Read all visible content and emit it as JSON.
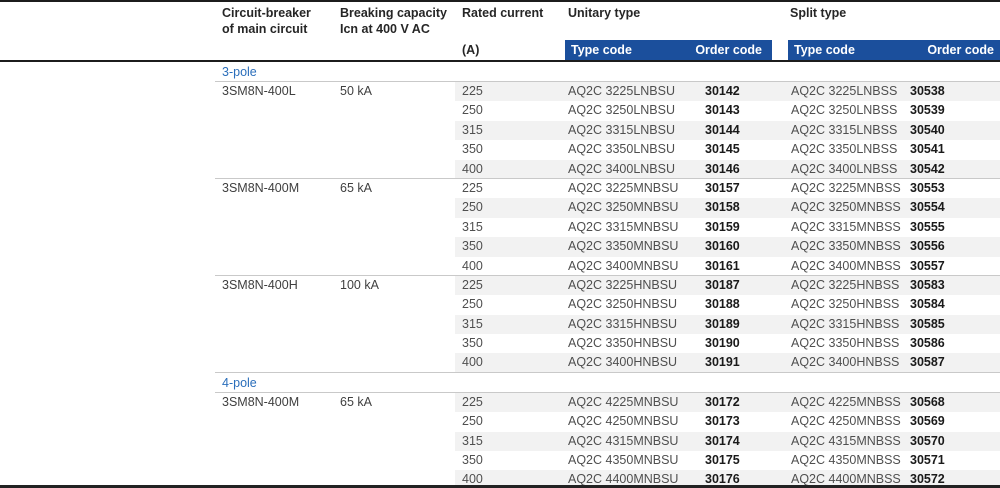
{
  "colors": {
    "bar_blue": "#1b4f9c",
    "section_blue": "#2a6ebb",
    "stripe_gray": "#f2f2f2"
  },
  "header": {
    "breaker_line1": "Circuit-breaker",
    "breaker_line2": "of main circuit",
    "capacity_line1": "Breaking capacity",
    "capacity_line2": "Icn at 400 V AC",
    "rated_line1": "Rated current",
    "rated_unit": "(A)",
    "unitary_label": "Unitary type",
    "split_label": "Split type",
    "type_code_label": "Type code",
    "order_code_label": "Order code"
  },
  "sections": [
    {
      "label": "3-pole",
      "groups": [
        {
          "breaker": "3SM8N-400L",
          "capacity": "50 kA",
          "rows": [
            {
              "a": "225",
              "u_type": "AQ2C 3225LNBSU",
              "u_order": "30142",
              "s_type": "AQ2C 3225LNBSS",
              "s_order": "30538"
            },
            {
              "a": "250",
              "u_type": "AQ2C 3250LNBSU",
              "u_order": "30143",
              "s_type": "AQ2C 3250LNBSS",
              "s_order": "30539"
            },
            {
              "a": "315",
              "u_type": "AQ2C 3315LNBSU",
              "u_order": "30144",
              "s_type": "AQ2C 3315LNBSS",
              "s_order": "30540"
            },
            {
              "a": "350",
              "u_type": "AQ2C 3350LNBSU",
              "u_order": "30145",
              "s_type": "AQ2C 3350LNBSS",
              "s_order": "30541"
            },
            {
              "a": "400",
              "u_type": "AQ2C 3400LNBSU",
              "u_order": "30146",
              "s_type": "AQ2C 3400LNBSS",
              "s_order": "30542"
            }
          ]
        },
        {
          "breaker": "3SM8N-400M",
          "capacity": "65 kA",
          "rows": [
            {
              "a": "225",
              "u_type": "AQ2C 3225MNBSU",
              "u_order": "30157",
              "s_type": "AQ2C 3225MNBSS",
              "s_order": "30553"
            },
            {
              "a": "250",
              "u_type": "AQ2C 3250MNBSU",
              "u_order": "30158",
              "s_type": "AQ2C 3250MNBSS",
              "s_order": "30554"
            },
            {
              "a": "315",
              "u_type": "AQ2C 3315MNBSU",
              "u_order": "30159",
              "s_type": "AQ2C 3315MNBSS",
              "s_order": "30555"
            },
            {
              "a": "350",
              "u_type": "AQ2C 3350MNBSU",
              "u_order": "30160",
              "s_type": "AQ2C 3350MNBSS",
              "s_order": "30556"
            },
            {
              "a": "400",
              "u_type": "AQ2C 3400MNBSU",
              "u_order": "30161",
              "s_type": "AQ2C 3400MNBSS",
              "s_order": "30557"
            }
          ]
        },
        {
          "breaker": "3SM8N-400H",
          "capacity": "100 kA",
          "rows": [
            {
              "a": "225",
              "u_type": "AQ2C 3225HNBSU",
              "u_order": "30187",
              "s_type": "AQ2C 3225HNBSS",
              "s_order": "30583"
            },
            {
              "a": "250",
              "u_type": "AQ2C 3250HNBSU",
              "u_order": "30188",
              "s_type": "AQ2C 3250HNBSS",
              "s_order": "30584"
            },
            {
              "a": "315",
              "u_type": "AQ2C 3315HNBSU",
              "u_order": "30189",
              "s_type": "AQ2C 3315HNBSS",
              "s_order": "30585"
            },
            {
              "a": "350",
              "u_type": "AQ2C 3350HNBSU",
              "u_order": "30190",
              "s_type": "AQ2C 3350HNBSS",
              "s_order": "30586"
            },
            {
              "a": "400",
              "u_type": "AQ2C 3400HNBSU",
              "u_order": "30191",
              "s_type": "AQ2C 3400HNBSS",
              "s_order": "30587"
            }
          ]
        }
      ]
    },
    {
      "label": "4-pole",
      "groups": [
        {
          "breaker": "3SM8N-400M",
          "capacity": "65 kA",
          "rows": [
            {
              "a": "225",
              "u_type": "AQ2C 4225MNBSU",
              "u_order": "30172",
              "s_type": "AQ2C 4225MNBSS",
              "s_order": "30568"
            },
            {
              "a": "250",
              "u_type": "AQ2C 4250MNBSU",
              "u_order": "30173",
              "s_type": "AQ2C 4250MNBSS",
              "s_order": "30569"
            },
            {
              "a": "315",
              "u_type": "AQ2C 4315MNBSU",
              "u_order": "30174",
              "s_type": "AQ2C 4315MNBSS",
              "s_order": "30570"
            },
            {
              "a": "350",
              "u_type": "AQ2C 4350MNBSU",
              "u_order": "30175",
              "s_type": "AQ2C 4350MNBSS",
              "s_order": "30571"
            },
            {
              "a": "400",
              "u_type": "AQ2C 4400MNBSU",
              "u_order": "30176",
              "s_type": "AQ2C 4400MNBSS",
              "s_order": "30572"
            }
          ]
        }
      ]
    }
  ]
}
